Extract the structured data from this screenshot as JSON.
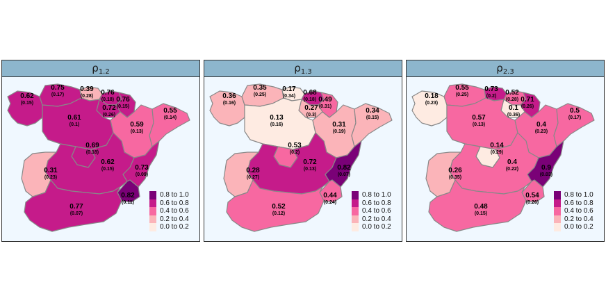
{
  "colors": {
    "bin_0.8_1.0": "#7a0177",
    "bin_0.6_0.8": "#c51b8a",
    "bin_0.4_0.6": "#f768a1",
    "bin_0.2_0.4": "#fbb4b9",
    "bin_0.0_0.2": "#feebe2",
    "strip": "#8db6cd",
    "background": "#f0f8ff",
    "border": "#888888"
  },
  "legend": [
    {
      "label": "0.8 to 1.0",
      "color": "#7a0177"
    },
    {
      "label": "0.6 to 0.8",
      "color": "#c51b8a"
    },
    {
      "label": "0.4 to 0.6",
      "color": "#f768a1"
    },
    {
      "label": "0.2 to 0.4",
      "color": "#fbb4b9"
    },
    {
      "label": "0.0 to 0.2",
      "color": "#feebe2"
    }
  ],
  "panels": [
    {
      "title": {
        "symbol": "ρ",
        "subscript": "1.2"
      },
      "regions": {
        "galicia": {
          "value": "0.62",
          "se": "(0.15)"
        },
        "asturias": {
          "value": "0.75",
          "se": "(0.17)"
        },
        "cantabria": {
          "value": "0.39",
          "se": "(0.28)"
        },
        "basque": {
          "value": "0.76",
          "se": "(0.18)"
        },
        "navarra": {
          "value": "0.76",
          "se": "(0.15)"
        },
        "rioja": {
          "value": "0.72",
          "se": "(0.26)"
        },
        "aragon": {
          "value": "0.59",
          "se": "(0.13)"
        },
        "catalonia": {
          "value": "0.55",
          "se": "(0.14)"
        },
        "castilla_leon": {
          "value": "0.61",
          "se": "(0.1)"
        },
        "madrid": {
          "value": "0.69",
          "se": "(0.18)"
        },
        "castilla_lamancha": {
          "value": "0.62",
          "se": "(0.15)"
        },
        "valencia": {
          "value": "0.73",
          "se": "(0.09)"
        },
        "extremadura": {
          "value": "0.31",
          "se": "(0.23)"
        },
        "murcia": {
          "value": "0.82",
          "se": "(0.11)"
        },
        "andalusia": {
          "value": "0.77",
          "se": "(0.07)"
        }
      }
    },
    {
      "title": {
        "symbol": "ρ",
        "subscript": "1.3"
      },
      "regions": {
        "galicia": {
          "value": "0.36",
          "se": "(0.16)"
        },
        "asturias": {
          "value": "0.35",
          "se": "(0.25)"
        },
        "cantabria": {
          "value": "0.17",
          "se": "(0.34)"
        },
        "basque": {
          "value": "0.68",
          "se": "(0.18)"
        },
        "navarra": {
          "value": "0.49",
          "se": "(0.31)"
        },
        "rioja": {
          "value": "0.27",
          "se": "(0.3)"
        },
        "aragon": {
          "value": "0.31",
          "se": "(0.19)"
        },
        "catalonia": {
          "value": "0.34",
          "se": "(0.15)"
        },
        "castilla_leon": {
          "value": "0.13",
          "se": "(0.16)"
        },
        "madrid": {
          "value": "0.53",
          "se": "(0.2)"
        },
        "castilla_lamancha": {
          "value": "0.72",
          "se": "(0.13)"
        },
        "valencia": {
          "value": "0.82",
          "se": "(0.07)"
        },
        "extremadura": {
          "value": "0.28",
          "se": "(0.27)"
        },
        "murcia": {
          "value": "0.44",
          "se": "(0.24)"
        },
        "andalusia": {
          "value": "0.52",
          "se": "(0.12)"
        }
      }
    },
    {
      "title": {
        "symbol": "ρ",
        "subscript": "2.3"
      },
      "regions": {
        "galicia": {
          "value": "0.18",
          "se": "(0.23)"
        },
        "asturias": {
          "value": "0.55",
          "se": "(0.25)"
        },
        "cantabria": {
          "value": "0.73",
          "se": "(0.2)"
        },
        "basque": {
          "value": "0.52",
          "se": "(0.28)"
        },
        "navarra": {
          "value": "0.71",
          "se": "(0.26)"
        },
        "rioja": {
          "value": "0.1",
          "se": "(0.36)"
        },
        "aragon": {
          "value": "0.4",
          "se": "(0.23)"
        },
        "catalonia": {
          "value": "0.5",
          "se": "(0.17)"
        },
        "castilla_leon": {
          "value": "0.57",
          "se": "(0.13)"
        },
        "madrid": {
          "value": "0.14",
          "se": "(0.29)"
        },
        "castilla_lamancha": {
          "value": "0.4",
          "se": "(0.22)"
        },
        "valencia": {
          "value": "0.9",
          "se": "(0.03)"
        },
        "extremadura": {
          "value": "0.26",
          "se": "(0.35)"
        },
        "murcia": {
          "value": "0.54",
          "se": "(0.26)"
        },
        "andalusia": {
          "value": "0.48",
          "se": "(0.15)"
        }
      }
    }
  ]
}
